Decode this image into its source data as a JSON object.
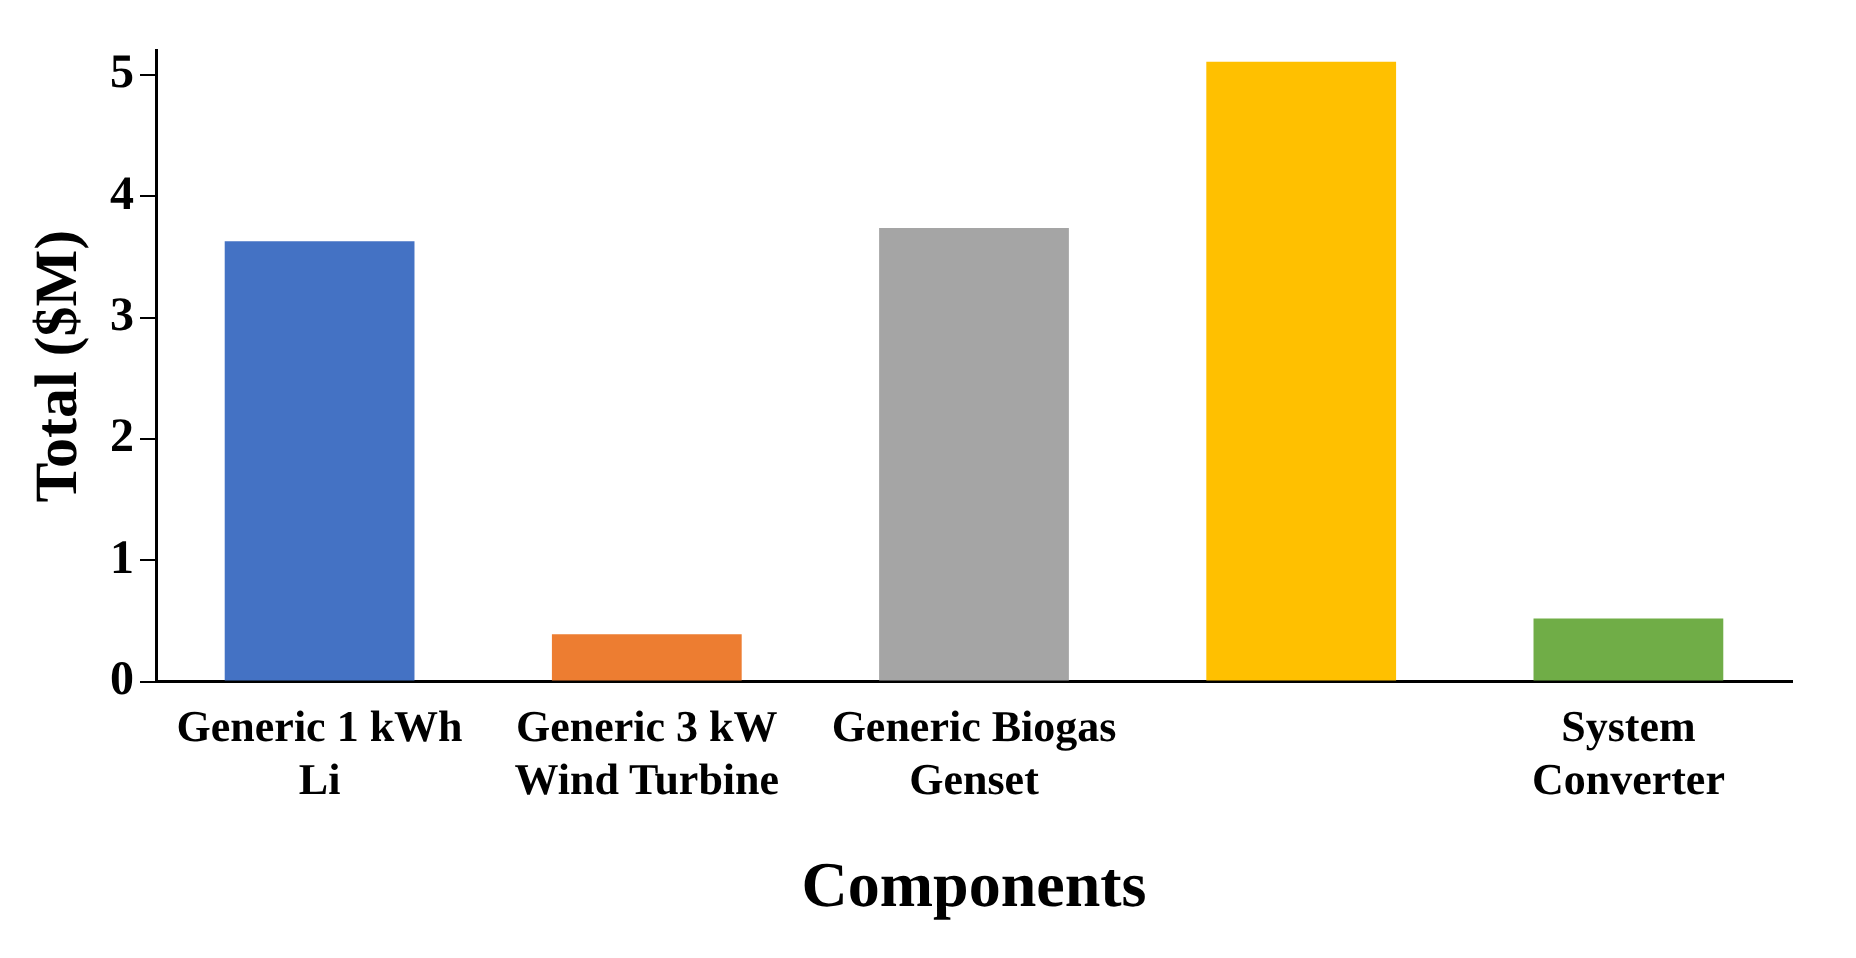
{
  "chart_data": {
    "type": "bar",
    "xlabel": "Components",
    "ylabel": "Total ($M)",
    "categories": [
      "Generic 1 kWh Li",
      "Generic 3 kW Wind Turbine",
      "Generic Biogas Genset",
      null,
      "System Converter"
    ],
    "values": [
      3.63,
      0.39,
      3.74,
      5.11,
      0.52
    ],
    "colors": [
      "#4472c4",
      "#ed7d31",
      "#a5a5a5",
      "#ffc000",
      "#70ad47"
    ],
    "ylim": [
      0,
      5.2
    ],
    "yticks": [
      0,
      1,
      2,
      3,
      4,
      5
    ],
    "grid": false,
    "legend": false
  }
}
